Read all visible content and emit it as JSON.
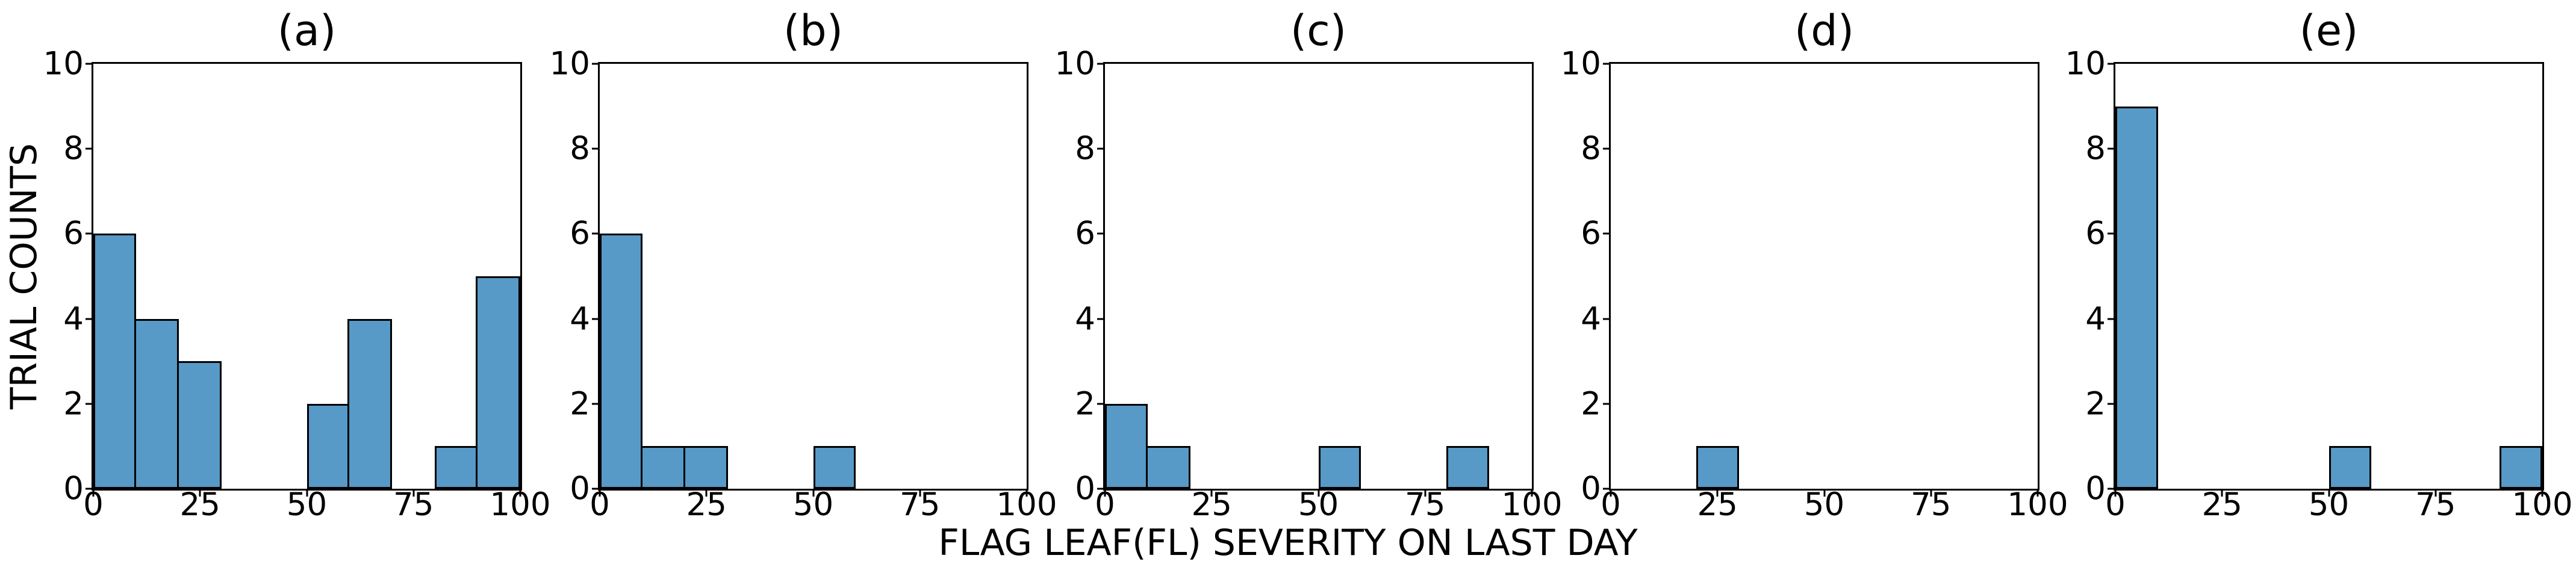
{
  "chart_data": {
    "type": "bar",
    "subtype": "histogram",
    "xlabel": "FLAG LEAF(FL) SEVERITY ON LAST DAY",
    "ylabel": "TRIAL COUNTS",
    "xlim": [
      0,
      100
    ],
    "ylim": [
      0,
      10
    ],
    "xticks": [
      0,
      25,
      50,
      75,
      100
    ],
    "yticks": [
      0,
      2,
      4,
      6,
      8,
      10
    ],
    "bin_width": 10,
    "grid": false,
    "legend": false,
    "bar_color": "#5799c7",
    "bar_edge_color": "#000000",
    "panels": [
      {
        "title": "(a)",
        "bins": [
          {
            "x0": 0,
            "x1": 10,
            "count": 6
          },
          {
            "x0": 10,
            "x1": 20,
            "count": 4
          },
          {
            "x0": 20,
            "x1": 30,
            "count": 3
          },
          {
            "x0": 50,
            "x1": 60,
            "count": 2
          },
          {
            "x0": 60,
            "x1": 70,
            "count": 4
          },
          {
            "x0": 80,
            "x1": 90,
            "count": 1
          },
          {
            "x0": 90,
            "x1": 100,
            "count": 5
          }
        ]
      },
      {
        "title": "(b)",
        "bins": [
          {
            "x0": 0,
            "x1": 10,
            "count": 6
          },
          {
            "x0": 10,
            "x1": 20,
            "count": 1
          },
          {
            "x0": 20,
            "x1": 30,
            "count": 1
          },
          {
            "x0": 50,
            "x1": 60,
            "count": 1
          }
        ]
      },
      {
        "title": "(c)",
        "bins": [
          {
            "x0": 0,
            "x1": 10,
            "count": 2
          },
          {
            "x0": 10,
            "x1": 20,
            "count": 1
          },
          {
            "x0": 50,
            "x1": 60,
            "count": 1
          },
          {
            "x0": 80,
            "x1": 90,
            "count": 1
          }
        ]
      },
      {
        "title": "(d)",
        "bins": [
          {
            "x0": 20,
            "x1": 30,
            "count": 1
          }
        ]
      },
      {
        "title": "(e)",
        "bins": [
          {
            "x0": 0,
            "x1": 10,
            "count": 9
          },
          {
            "x0": 50,
            "x1": 60,
            "count": 1
          },
          {
            "x0": 90,
            "x1": 100,
            "count": 1
          }
        ]
      }
    ]
  }
}
